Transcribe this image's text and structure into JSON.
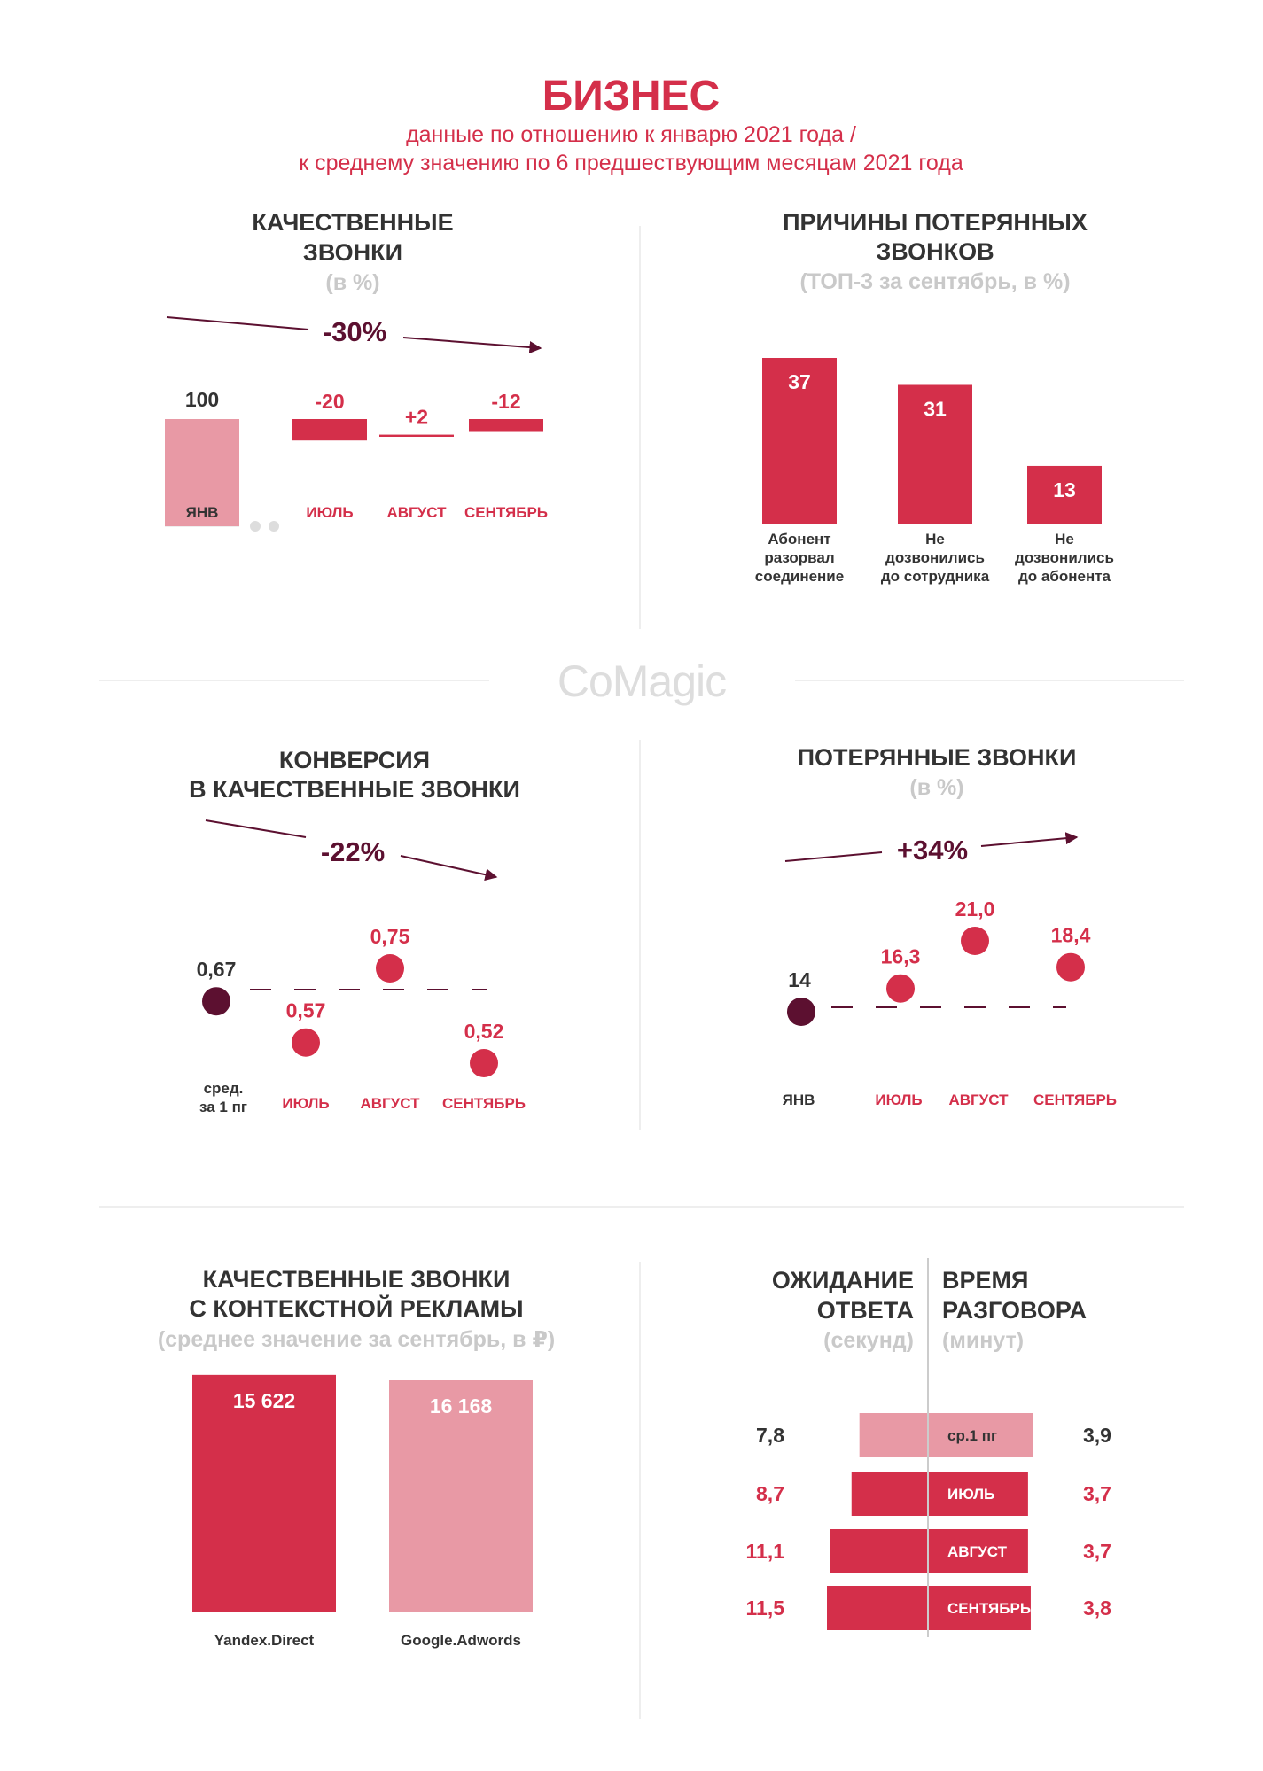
{
  "header": {
    "title": "БИЗНЕС",
    "subtitle_line1": "данные по отношению к январю 2021 года /",
    "subtitle_line2": "к среднему значению по 6 предшествующим месяцам 2021 года"
  },
  "logo": {
    "text": "CoMagic"
  },
  "colors": {
    "red": "#d42f4a",
    "pink": "#e899a5",
    "dark": "#5c1030",
    "text": "#333333",
    "gray": "#c9c9c9"
  },
  "chart_data": [
    {
      "id": "quality_calls",
      "type": "bar",
      "title_lines": [
        "КАЧЕСТВЕННЫЕ",
        "ЗВОНКИ"
      ],
      "subtitle": "(в %)",
      "trend_label": "-30%",
      "categories": [
        "ЯНВ",
        "ИЮЛЬ",
        "АВГУСТ",
        "СЕНТЯБРЬ"
      ],
      "values": [
        100,
        -20,
        2,
        -12
      ],
      "value_labels": [
        "100",
        "-20",
        "+2",
        "-12"
      ],
      "baseline": 100
    },
    {
      "id": "lost_reasons",
      "type": "bar",
      "title_lines": [
        "ПРИЧИНЫ ПОТЕРЯННЫХ",
        "ЗВОНКОВ"
      ],
      "subtitle": "(ТОП-3 за сентябрь, в %)",
      "categories": [
        [
          "Абонент",
          "разорвал",
          "соединение"
        ],
        [
          "Не",
          "дозвонились",
          "до сотрудника"
        ],
        [
          "Не",
          "дозвонились",
          "до абонента"
        ]
      ],
      "values": [
        37,
        31,
        13
      ],
      "value_labels": [
        "37",
        "31",
        "13"
      ],
      "ylim": [
        0,
        37
      ]
    },
    {
      "id": "conversion",
      "type": "scatter",
      "title_lines": [
        "КОНВЕРСИЯ",
        "В КАЧЕСТВЕННЫЕ ЗВОНКИ"
      ],
      "trend_label": "-22%",
      "categories": [
        [
          "сред.",
          "за 1 пг"
        ],
        [
          "ИЮЛЬ"
        ],
        [
          "АВГУСТ"
        ],
        [
          "СЕНТЯБРЬ"
        ]
      ],
      "values": [
        0.67,
        0.57,
        0.75,
        0.52
      ],
      "value_labels": [
        "0,67",
        "0,57",
        "0,75",
        "0,52"
      ],
      "ylim": [
        0.52,
        0.75
      ]
    },
    {
      "id": "lost_calls",
      "type": "scatter",
      "title_lines": [
        "ПОТЕРЯННЫЕ ЗВОНКИ"
      ],
      "subtitle": "(в %)",
      "trend_label": "+34%",
      "categories": [
        [
          "ЯНВ"
        ],
        [
          "ИЮЛЬ"
        ],
        [
          "АВГУСТ"
        ],
        [
          "СЕНТЯБРЬ"
        ]
      ],
      "values": [
        14,
        16.3,
        21.0,
        18.4
      ],
      "value_labels": [
        "14",
        "16,3",
        "21,0",
        "18,4"
      ],
      "ylim": [
        14,
        21
      ]
    },
    {
      "id": "context_ads",
      "type": "bar",
      "title_lines": [
        "КАЧЕСТВЕННЫЕ ЗВОНКИ",
        "С КОНТЕКСТНОЙ РЕКЛАМЫ"
      ],
      "subtitle": "(среднее значение за сентябрь, в ₽)",
      "categories": [
        "Yandex.Direct",
        "Google.Adwords"
      ],
      "values": [
        15622,
        16168
      ],
      "value_labels": [
        "15 622",
        "16 168"
      ]
    },
    {
      "id": "wait_talk",
      "type": "bar",
      "left_title_lines": [
        "ОЖИДАНИЕ",
        "ОТВЕТА"
      ],
      "left_subtitle": "(секунд)",
      "right_title_lines": [
        "ВРЕМЯ",
        "РАЗГОВОРА"
      ],
      "right_subtitle": "(минут)",
      "categories": [
        "ср.1 пг",
        "ИЮЛЬ",
        "АВГУСТ",
        "СЕНТЯБРЬ"
      ],
      "series": [
        {
          "values": [
            7.8,
            8.7,
            11.1,
            11.5
          ],
          "value_labels": [
            "7,8",
            "8,7",
            "11,1",
            "11,5"
          ]
        },
        {
          "values": [
            3.9,
            3.7,
            3.7,
            3.8
          ],
          "value_labels": [
            "3,9",
            "3,7",
            "3,7",
            "3,8"
          ]
        }
      ]
    }
  ]
}
